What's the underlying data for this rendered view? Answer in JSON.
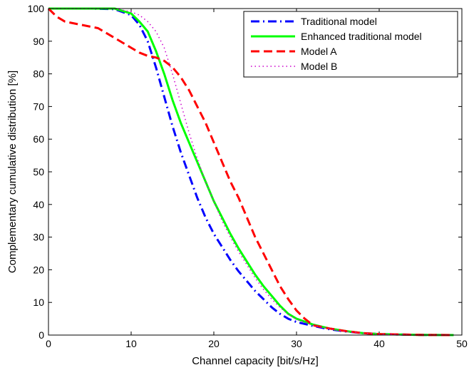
{
  "chart_data": {
    "type": "line",
    "title": "",
    "xlabel": "Channel capacity [bit/s/Hz]",
    "ylabel": "Complementary cumulative distribution [%]",
    "xlim": [
      0,
      50
    ],
    "ylim": [
      0,
      100
    ],
    "xticks": [
      "0",
      "10",
      "20",
      "30",
      "40",
      "50"
    ],
    "yticks": [
      "0",
      "10",
      "20",
      "30",
      "40",
      "50",
      "60",
      "70",
      "80",
      "90",
      "100"
    ],
    "grid": false,
    "legend_position": "top-right",
    "series": [
      {
        "name": "Traditional model",
        "color": "#0000ff",
        "style": "dashdot",
        "x": [
          0,
          5,
          8,
          10,
          11,
          12,
          13,
          14,
          15,
          16,
          17,
          18,
          19,
          20,
          21,
          22,
          23,
          24,
          25,
          26,
          27,
          28,
          29,
          30,
          32,
          34,
          36,
          38,
          40,
          45,
          49
        ],
        "y": [
          100,
          100,
          99.8,
          98,
          95,
          90,
          82,
          73,
          64,
          56,
          49,
          42,
          36,
          31,
          27,
          23,
          19.5,
          16.5,
          13.5,
          11,
          8.5,
          6.5,
          5,
          4,
          2.8,
          1.8,
          1.1,
          0.6,
          0.3,
          0.05,
          0
        ]
      },
      {
        "name": "Enhanced traditional model",
        "color": "#00ff00",
        "style": "solid",
        "x": [
          0,
          5,
          8,
          10,
          11,
          12,
          13,
          14,
          15,
          16,
          17,
          18,
          19,
          20,
          21,
          22,
          23,
          24,
          25,
          26,
          27,
          28,
          29,
          30,
          32,
          34,
          36,
          38,
          40,
          45,
          49
        ],
        "y": [
          100,
          100,
          100,
          98.5,
          96,
          93,
          87,
          80,
          72,
          65,
          59,
          53,
          47,
          41,
          36,
          31,
          26.5,
          22.5,
          18.5,
          15,
          12,
          9,
          6.5,
          5,
          3.2,
          2,
          1.2,
          0.6,
          0.3,
          0.05,
          0
        ]
      },
      {
        "name": "Model A",
        "color": "#ff0000",
        "style": "dashed",
        "x": [
          0,
          1,
          2,
          4,
          6,
          8,
          10,
          11,
          12,
          13,
          14,
          15,
          16,
          17,
          18,
          19,
          20,
          21,
          22,
          23,
          24,
          25,
          26,
          27,
          28,
          29,
          30,
          31,
          32,
          34,
          36,
          38,
          40,
          45,
          49
        ],
        "y": [
          100,
          97.5,
          96,
          95,
          94,
          91,
          88,
          86.5,
          85.5,
          85,
          84,
          82,
          79,
          75,
          70,
          65,
          59,
          53,
          47,
          42,
          36,
          30,
          25,
          20,
          15,
          11,
          7.5,
          5,
          3,
          2,
          1.2,
          0.6,
          0.3,
          0.05,
          0
        ]
      },
      {
        "name": "Model B",
        "color": "#cc00cc",
        "style": "dotted",
        "x": [
          0,
          5,
          8,
          10,
          11,
          12,
          13,
          14,
          15,
          16,
          17,
          18,
          19,
          20,
          21,
          22,
          23,
          24,
          25,
          26,
          27,
          28,
          29,
          30,
          32,
          34,
          36,
          38,
          40,
          45,
          49
        ],
        "y": [
          100,
          100,
          100,
          99,
          98,
          96,
          93,
          88,
          80,
          71,
          62,
          54,
          47,
          41,
          35,
          30,
          25.5,
          21.5,
          17.5,
          14,
          11,
          8.5,
          6.3,
          4.8,
          3,
          1.9,
          1.1,
          0.6,
          0.3,
          0.05,
          0
        ]
      }
    ]
  }
}
